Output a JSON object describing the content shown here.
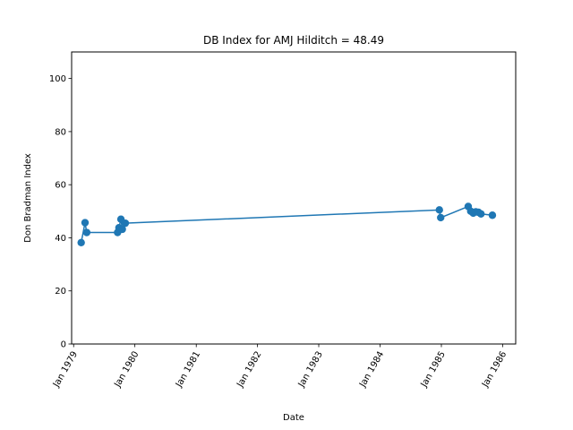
{
  "chart_data": {
    "type": "line",
    "title": "DB Index for AMJ Hilditch = 48.49",
    "xlabel": "Date",
    "ylabel": "Don Bradman Index",
    "x_ticks": [
      "Jan 1979",
      "Jan 1980",
      "Jan 1981",
      "Jan 1982",
      "Jan 1983",
      "Jan 1984",
      "Jan 1985",
      "Jan 1986"
    ],
    "y_ticks": [
      "0",
      "20",
      "40",
      "60",
      "80",
      "100"
    ],
    "ylim": [
      0,
      110
    ],
    "xlim": [
      "1978-12-20",
      "1986-03-20"
    ],
    "grid": false,
    "color": "#1f77b4",
    "series": [
      {
        "name": "",
        "points": [
          {
            "x": "1979-02-15",
            "y": 38.2
          },
          {
            "x": "1979-03-10",
            "y": 45.7
          },
          {
            "x": "1979-03-20",
            "y": 42.0
          },
          {
            "x": "1979-09-20",
            "y": 42.0
          },
          {
            "x": "1979-09-28",
            "y": 43.8
          },
          {
            "x": "1979-10-10",
            "y": 47.0
          },
          {
            "x": "1979-10-18",
            "y": 43.2
          },
          {
            "x": "1979-11-05",
            "y": 45.5
          },
          {
            "x": "1984-12-20",
            "y": 50.5
          },
          {
            "x": "1984-12-28",
            "y": 47.6
          },
          {
            "x": "1985-06-10",
            "y": 51.8
          },
          {
            "x": "1985-06-25",
            "y": 50.0
          },
          {
            "x": "1985-07-10",
            "y": 49.3
          },
          {
            "x": "1985-07-25",
            "y": 49.8
          },
          {
            "x": "1985-08-10",
            "y": 49.6
          },
          {
            "x": "1985-08-25",
            "y": 49.0
          },
          {
            "x": "1985-11-01",
            "y": 48.5
          }
        ]
      }
    ]
  }
}
